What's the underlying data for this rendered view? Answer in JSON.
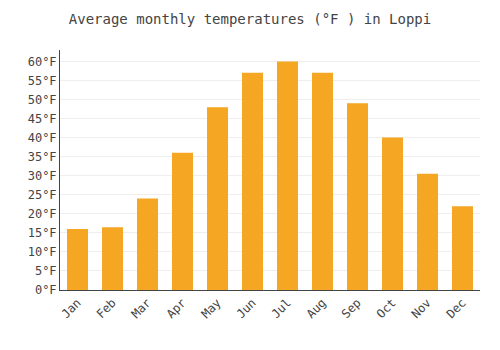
{
  "chart_data": {
    "type": "bar",
    "title": "Average monthly temperatures (°F ) in Loppi",
    "categories": [
      "Jan",
      "Feb",
      "Mar",
      "Apr",
      "May",
      "Jun",
      "Jul",
      "Aug",
      "Sep",
      "Oct",
      "Nov",
      "Dec"
    ],
    "values": [
      16,
      16.5,
      24,
      36,
      48,
      57,
      60,
      57,
      49,
      40,
      30.5,
      22
    ],
    "color": "#F5A623",
    "ylim": [
      0,
      63
    ],
    "yticks": [
      {
        "value": 0,
        "label": "0°F"
      },
      {
        "value": 5,
        "label": "5°F"
      },
      {
        "value": 10,
        "label": "10°F"
      },
      {
        "value": 15,
        "label": "15°F"
      },
      {
        "value": 20,
        "label": "20°F"
      },
      {
        "value": 25,
        "label": "25°F"
      },
      {
        "value": 30,
        "label": "30°F"
      },
      {
        "value": 35,
        "label": "35°F"
      },
      {
        "value": 40,
        "label": "40°F"
      },
      {
        "value": 45,
        "label": "45°F"
      },
      {
        "value": 50,
        "label": "50°F"
      },
      {
        "value": 55,
        "label": "55°F"
      },
      {
        "value": 60,
        "label": "60°F"
      }
    ],
    "grid": true
  }
}
